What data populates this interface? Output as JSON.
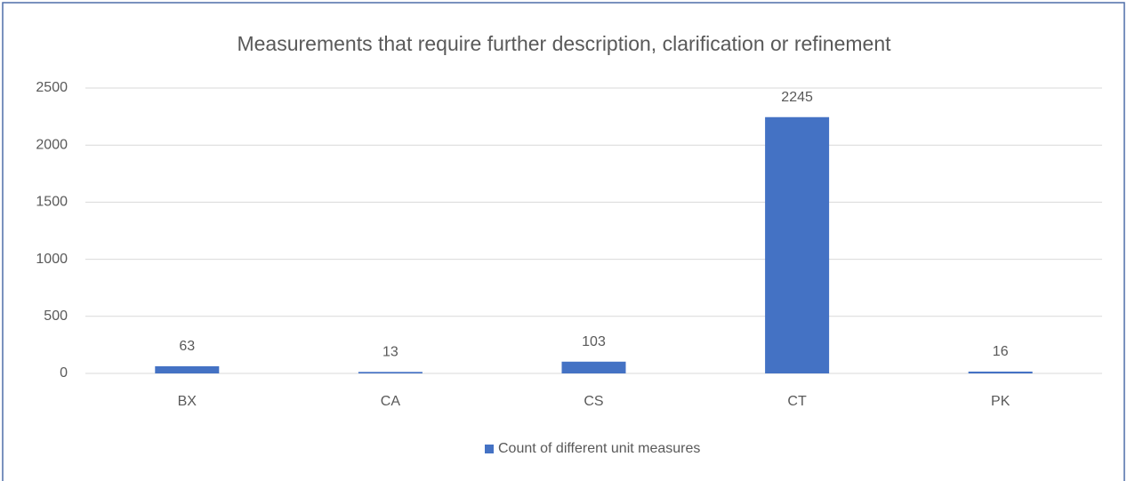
{
  "chart_data": {
    "type": "bar",
    "title": "Measurements that require further description, clarification or refinement",
    "categories": [
      "BX",
      "CA",
      "CS",
      "CT",
      "PK"
    ],
    "series": [
      {
        "name": "Count of different unit measures",
        "color": "#4472c4",
        "values": [
          63,
          13,
          103,
          2245,
          16
        ]
      }
    ],
    "ylim": [
      0,
      2500
    ],
    "yticks": [
      0,
      500,
      1000,
      1500,
      2000,
      2500
    ],
    "grid": true,
    "legend": "bottom"
  }
}
